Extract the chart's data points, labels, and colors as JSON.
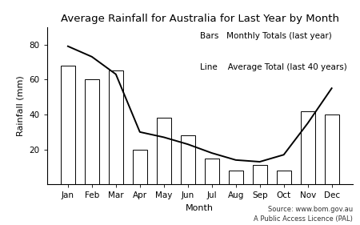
{
  "title": "Average Rainfall for Australia for Last Year by Month",
  "xlabel": "Month",
  "ylabel": "Rainfall (mm)",
  "months": [
    "Jan",
    "Feb",
    "Mar",
    "Apr",
    "May",
    "Jun",
    "Jul",
    "Aug",
    "Sep",
    "Oct",
    "Nov",
    "Dec"
  ],
  "bar_values": [
    68,
    60,
    65,
    20,
    38,
    28,
    15,
    8,
    11,
    8,
    42,
    40
  ],
  "line_values": [
    79,
    73,
    63,
    30,
    27,
    23,
    18,
    14,
    13,
    17,
    35,
    55
  ],
  "bar_color": "#ffffff",
  "bar_edgecolor": "#000000",
  "line_color": "#000000",
  "ylim": [
    0,
    90
  ],
  "yticks": [
    20,
    40,
    60,
    80
  ],
  "legend_bars_label": "Bars   Monthly Totals (last year)",
  "legend_line_label": "Line    Average Total (last 40 years)",
  "source_line1": "Source: www.bom.gov.au",
  "source_line2": "A Public Access Licence (PAL)",
  "bg_color": "#ffffff",
  "title_fontsize": 9.5,
  "axis_label_fontsize": 8,
  "tick_fontsize": 7.5,
  "source_fontsize": 6,
  "legend_fontsize": 7.5
}
